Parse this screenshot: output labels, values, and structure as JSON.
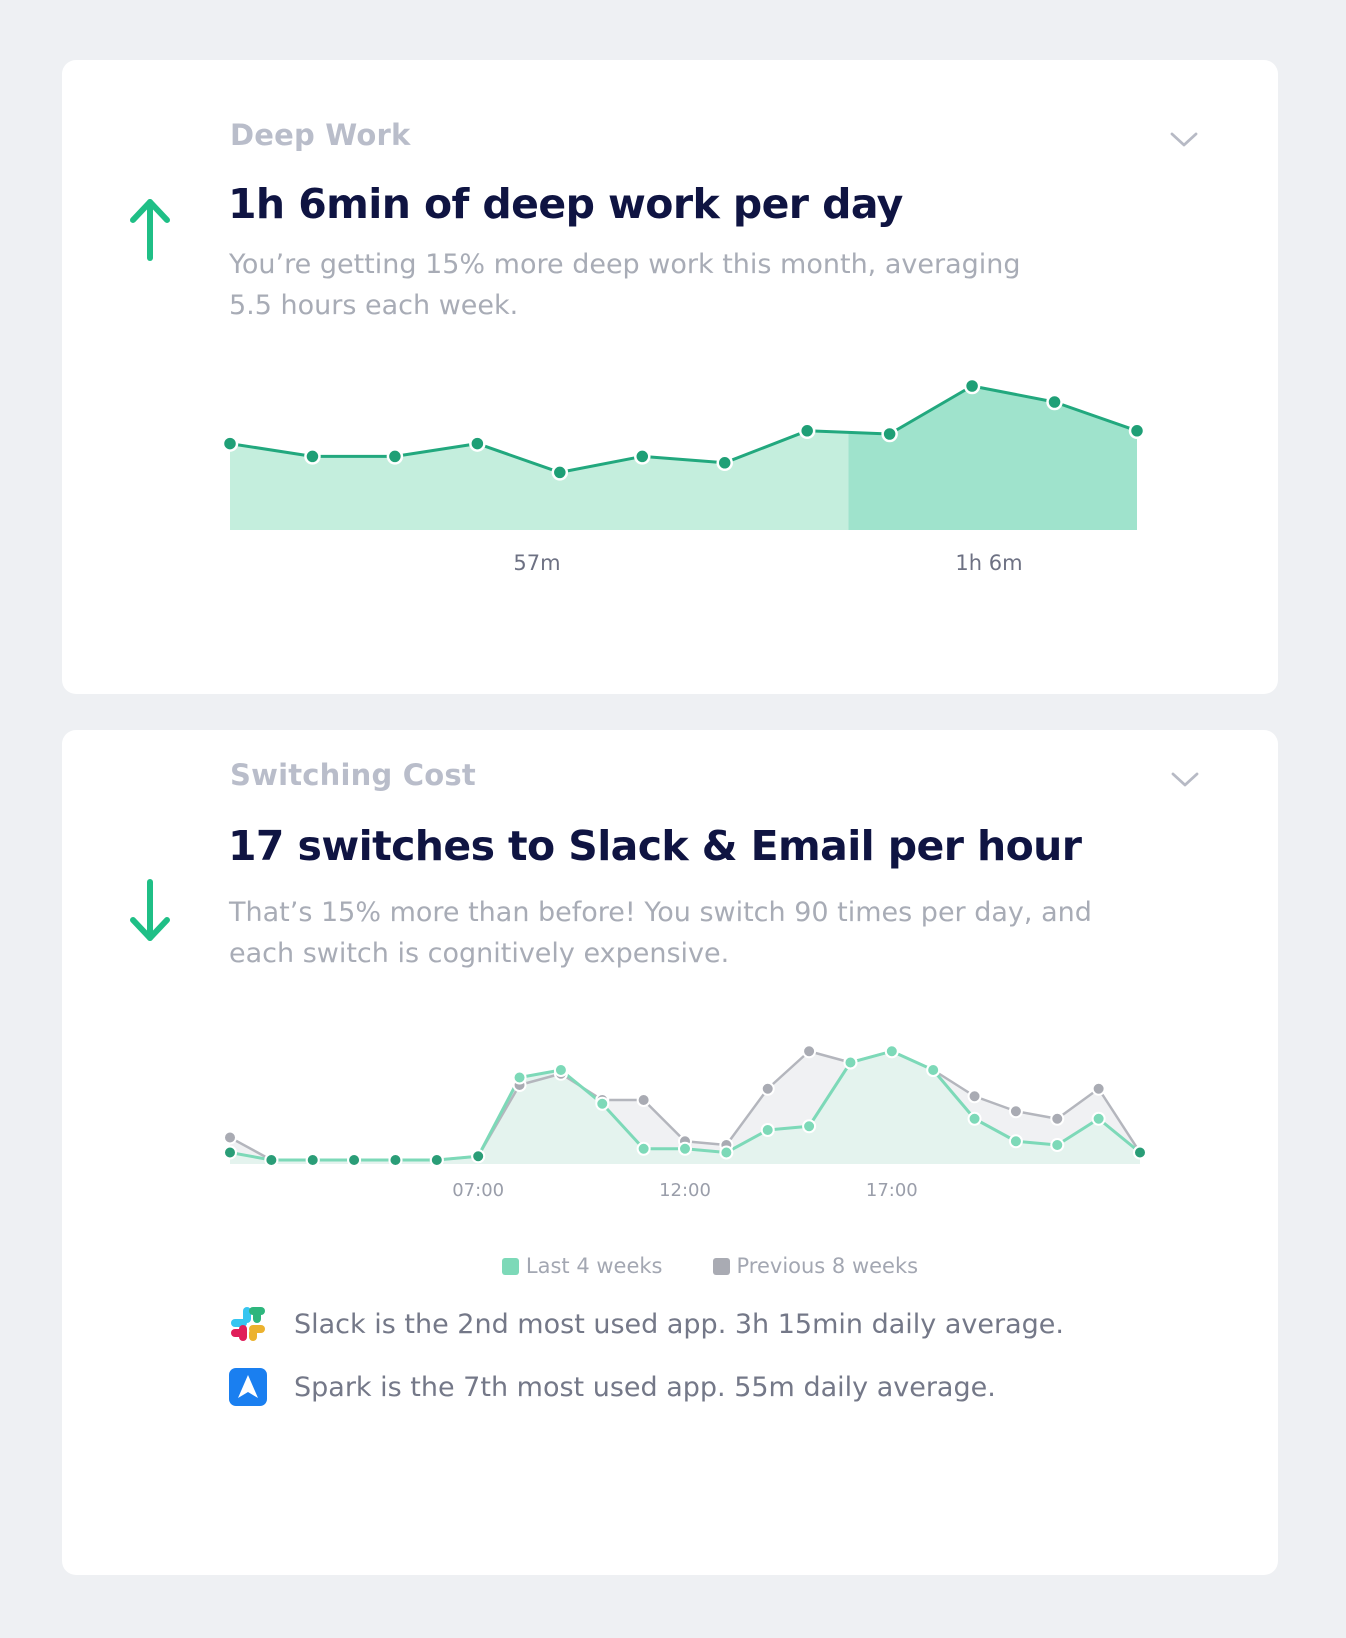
{
  "deep_work": {
    "section_label": "Deep Work",
    "headline": "1h 6min of deep work per day",
    "description": "You’re getting 15% more deep work this month, averaging 5.5 hours each week.",
    "trend": "up",
    "trend_icon": "arrow-up-icon",
    "chevron_icon": "chevron-down-icon",
    "accent_color": "#21b88a",
    "chart_data": {
      "type": "area",
      "title": "",
      "xlabel": "",
      "ylabel": "",
      "period_labels": [
        "57m",
        "1h 6m"
      ],
      "values": [
        57,
        53,
        53,
        57,
        48,
        53,
        51,
        61,
        60,
        75,
        70,
        61
      ],
      "period_split_index": 7,
      "ylim": [
        30,
        80
      ],
      "grid": false,
      "colors": {
        "line": "#22a87e",
        "fill_previous": "#c4eedd",
        "fill_current": "#9fe3cc"
      }
    }
  },
  "switching_cost": {
    "section_label": "Switching Cost",
    "headline": "17 switches to Slack & Email per hour",
    "description": "That’s 15% more than before! You switch 90 times per day, and each switch is cognitively expensive.",
    "trend": "down",
    "trend_icon": "arrow-down-icon",
    "chevron_icon": "chevron-down-icon",
    "chart_data": {
      "type": "line",
      "title": "",
      "xlabel": "",
      "ylabel": "",
      "x_tick_labels": [
        "07:00",
        "12:00",
        "17:00"
      ],
      "x_tick_positions": [
        6,
        11,
        16
      ],
      "x": [
        0,
        1,
        2,
        3,
        4,
        5,
        6,
        7,
        8,
        9,
        10,
        11,
        12,
        13,
        14,
        15,
        16,
        17,
        18,
        19,
        20,
        21,
        22
      ],
      "series": [
        {
          "name": "Last 4 weeks",
          "color": "#7dd9b8",
          "values": [
            2,
            0,
            0,
            0,
            0,
            0,
            1,
            22,
            24,
            15,
            3,
            3,
            2,
            8,
            9,
            26,
            29,
            24,
            11,
            5,
            4,
            11,
            2
          ]
        },
        {
          "name": "Previous 8 weeks",
          "color": "#a9abb3",
          "values": [
            6,
            0,
            0,
            0,
            0,
            0,
            1,
            20,
            23,
            16,
            16,
            5,
            4,
            19,
            29,
            26,
            29,
            24,
            17,
            13,
            11,
            19,
            2
          ]
        }
      ],
      "ylim": [
        0,
        32
      ],
      "grid": false,
      "legend_placement": "bottom-center"
    },
    "apps": [
      {
        "icon": "slack-icon",
        "text": "Slack is the 2nd most used app. 3h 15min daily average."
      },
      {
        "icon": "spark-icon",
        "text": "Spark is the 7th most used app. 55m daily average."
      }
    ]
  }
}
